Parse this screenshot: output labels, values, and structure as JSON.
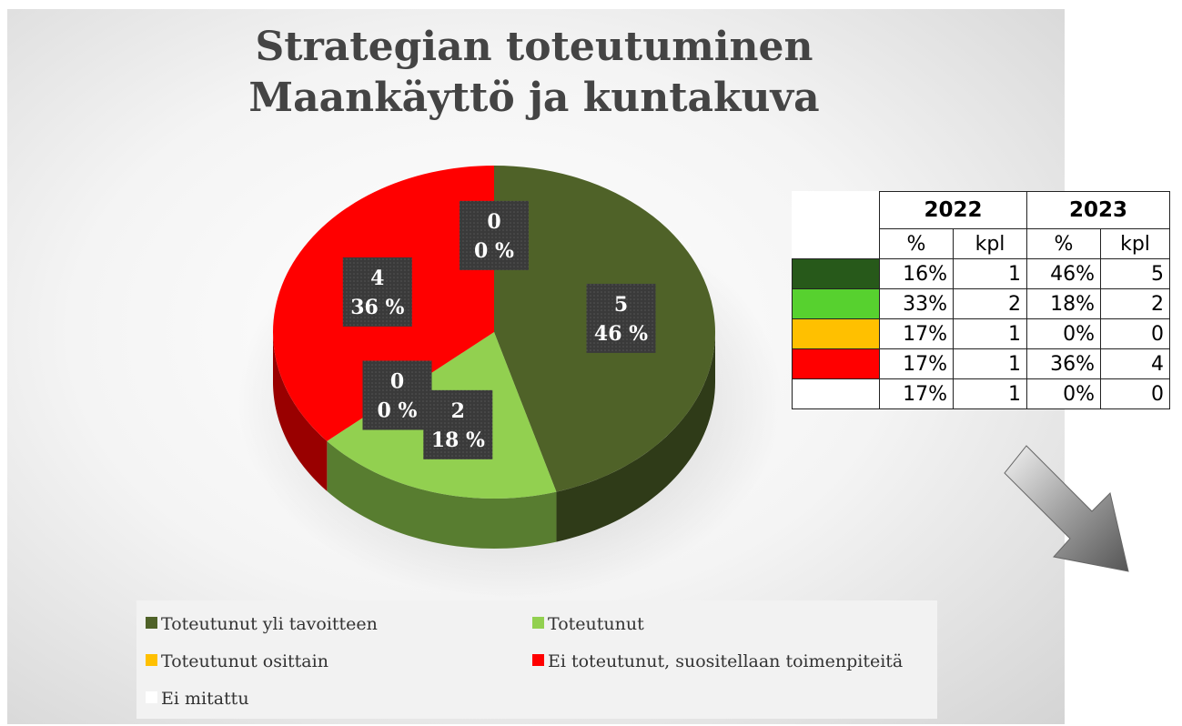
{
  "chart_data": {
    "type": "pie",
    "title": "Strategian toteutuminen",
    "subtitle": "Maankäyttö ja kuntakuva",
    "categories": [
      "Toteutunut yli tavoitteen",
      "Toteutunut",
      "Toteutunut osittain",
      "Ei toteutunut, suositellaan toimenpiteitä",
      "Ei mitattu"
    ],
    "values": [
      5,
      2,
      0,
      4,
      0
    ],
    "percent_labels": [
      "46 %",
      "18 %",
      "0 %",
      "36 %",
      "0 %"
    ],
    "colors": [
      "#4f6228",
      "#92d050",
      "#ffc000",
      "#ff0000",
      "#ffffff"
    ]
  },
  "table": {
    "years": [
      "2022",
      "2023"
    ],
    "subheaders": [
      "%",
      "kpl",
      "%",
      "kpl"
    ],
    "row_colors": [
      "#27591a",
      "#57d12f",
      "#ffc000",
      "#ff0000",
      "#ffffff"
    ],
    "rows": [
      [
        "16%",
        "1",
        "46%",
        "5"
      ],
      [
        "33%",
        "2",
        "18%",
        "2"
      ],
      [
        "17%",
        "1",
        "0%",
        "0"
      ],
      [
        "17%",
        "1",
        "36%",
        "4"
      ],
      [
        "17%",
        "1",
        "0%",
        "0"
      ]
    ]
  }
}
